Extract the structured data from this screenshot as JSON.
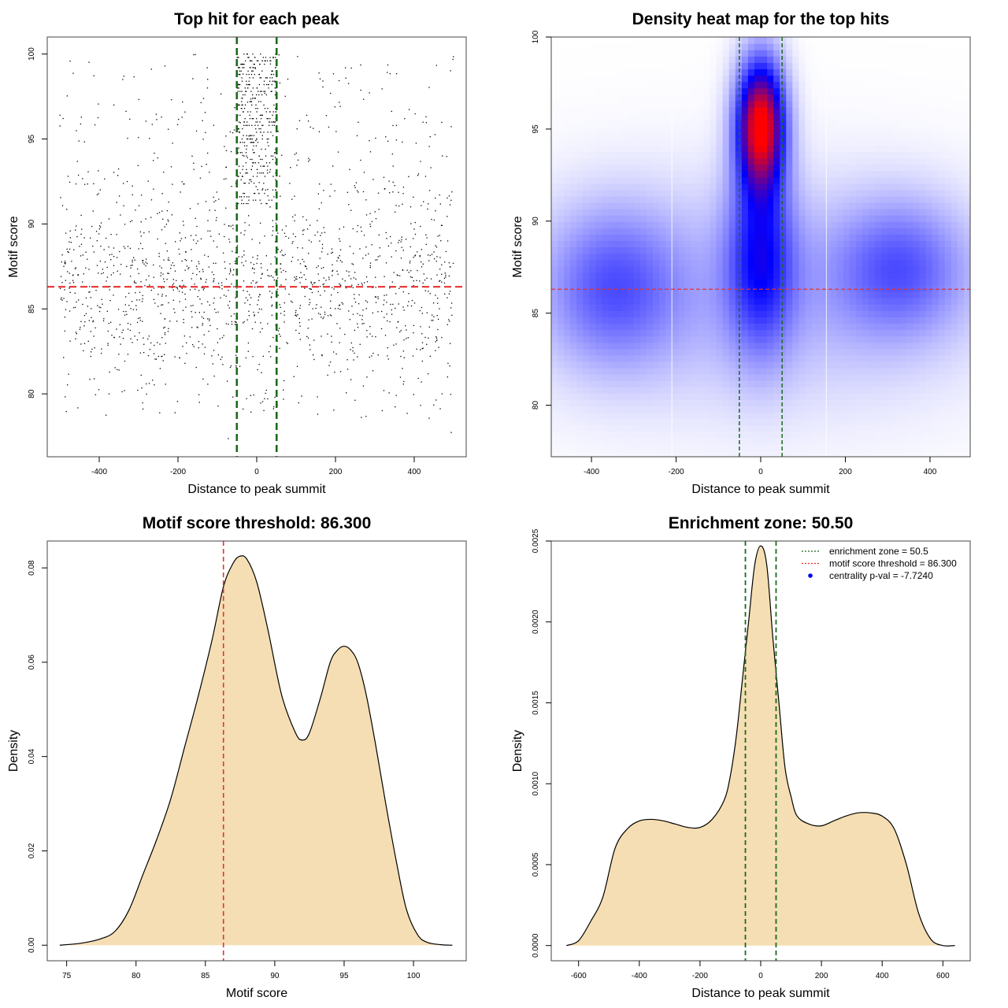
{
  "colors": {
    "threshold_line": "#e8302f",
    "zone_line": "#1a6b1a",
    "density_fill": "#f5deb3",
    "point": "#000000",
    "heat_low": "#ffffff",
    "heat_mid": "#0000ff",
    "heat_high": "#ff0000",
    "legend_zone": "#1a6b1a",
    "legend_threshold": "#e8302f",
    "legend_pval": "#0000ff"
  },
  "chart_data": [
    {
      "id": "scatter",
      "type": "scatter",
      "title": "Top hit for each peak",
      "xlabel": "Distance to peak summit",
      "ylabel": "Motif score",
      "xlim": [
        -532,
        532
      ],
      "ylim": [
        76.3,
        101.0
      ],
      "xticks": [
        -400,
        -200,
        0,
        200,
        400
      ],
      "yticks": [
        80,
        85,
        90,
        95,
        100
      ],
      "hlines": [
        86.3
      ],
      "vlines": [
        -50.5,
        50.5
      ],
      "n_points_approx": 2000,
      "clusters": [
        {
          "x_range": [
            -500,
            500
          ],
          "y_range": [
            78.5,
            100
          ],
          "share": 0.62
        },
        {
          "x_range": [
            -50,
            50
          ],
          "y_range": [
            91,
            100
          ],
          "share": 0.2
        },
        {
          "x_range": [
            -500,
            500
          ],
          "y_range": [
            82,
            90
          ],
          "share": 0.18
        }
      ]
    },
    {
      "id": "heatmap",
      "type": "heatmap",
      "title": "Density heat map for the top hits",
      "xlabel": "Distance to peak summit",
      "ylabel": "Motif score",
      "xlim": [
        -495,
        495
      ],
      "ylim": [
        77.2,
        100.0
      ],
      "xticks": [
        -400,
        -200,
        0,
        200,
        400
      ],
      "yticks": [
        80,
        85,
        90,
        95,
        100
      ],
      "hlines": [
        86.3
      ],
      "vlines": [
        -50.5,
        50.5
      ],
      "white_vlines": [
        -210,
        155
      ],
      "hotspots": [
        {
          "x": 0,
          "y": 95.3,
          "sx": 40,
          "sy": 2.5,
          "w": 1.0
        },
        {
          "x": 0,
          "y": 88,
          "sx": 55,
          "sy": 3.5,
          "w": 0.42
        },
        {
          "x": -350,
          "y": 86.5,
          "sx": 110,
          "sy": 3.0,
          "w": 0.28
        },
        {
          "x": 330,
          "y": 87.5,
          "sx": 110,
          "sy": 2.6,
          "w": 0.28
        },
        {
          "x": 0,
          "y": 86,
          "sx": 400,
          "sy": 4.5,
          "w": 0.16
        }
      ]
    },
    {
      "id": "score-density",
      "type": "area",
      "title": "Motif score threshold: 86.300",
      "xlabel": "Motif score",
      "ylabel": "Density",
      "xlim": [
        73.6,
        103.8
      ],
      "ylim": [
        -0.0033,
        0.0857
      ],
      "xticks": [
        75,
        80,
        85,
        90,
        95,
        100
      ],
      "yticks": [
        0.0,
        0.02,
        0.04,
        0.06,
        0.08
      ],
      "ytick_labels": [
        "0.00",
        "0.02",
        "0.04",
        "0.06",
        "0.08"
      ],
      "vlines": [
        86.3
      ],
      "x": [
        74.5,
        76,
        77.5,
        78.5,
        79.5,
        80.5,
        81.5,
        82.5,
        83.5,
        84.5,
        85.5,
        86.3,
        87,
        87.5,
        88,
        88.7,
        89.5,
        90.5,
        91.5,
        92,
        92.5,
        93.3,
        94,
        94.5,
        95,
        95.5,
        96,
        96.6,
        97.3,
        98,
        98.8,
        99.5,
        100.3,
        101,
        102,
        102.8
      ],
      "y": [
        0.0,
        0.0004,
        0.0014,
        0.003,
        0.0075,
        0.015,
        0.0225,
        0.031,
        0.042,
        0.053,
        0.065,
        0.076,
        0.081,
        0.0825,
        0.0818,
        0.077,
        0.067,
        0.053,
        0.045,
        0.0435,
        0.045,
        0.0525,
        0.06,
        0.0625,
        0.0634,
        0.0625,
        0.0598,
        0.053,
        0.042,
        0.03,
        0.0172,
        0.0075,
        0.0022,
        0.0006,
        0.0001,
        0.0
      ]
    },
    {
      "id": "distance-density",
      "type": "area",
      "title": "Enrichment zone: 50.50",
      "xlabel": "Distance to peak summit",
      "ylabel": "Density",
      "xlim": [
        -690,
        690
      ],
      "ylim": [
        -9.4e-05,
        0.0025
      ],
      "xticks": [
        -600,
        -400,
        -200,
        0,
        200,
        400,
        600
      ],
      "yticks": [
        0.0,
        0.0005,
        0.001,
        0.0015,
        0.002,
        0.0025
      ],
      "ytick_labels": [
        "0.0000",
        "0.0005",
        "0.0010",
        "0.0015",
        "0.0020",
        "0.0025"
      ],
      "vlines": [
        -50.5,
        50.5
      ],
      "x": [
        -640,
        -600,
        -560,
        -520,
        -480,
        -440,
        -400,
        -360,
        -320,
        -280,
        -240,
        -200,
        -160,
        -120,
        -100,
        -80,
        -60,
        -40,
        -20,
        0,
        20,
        40,
        60,
        80,
        100,
        120,
        160,
        200,
        240,
        280,
        320,
        360,
        400,
        440,
        480,
        520,
        560,
        600,
        640
      ],
      "y": [
        0.0,
        3e-05,
        0.00015,
        0.0003,
        0.0006,
        0.00072,
        0.00077,
        0.00078,
        0.00077,
        0.00075,
        0.00073,
        0.00073,
        0.00078,
        0.0009,
        0.00105,
        0.0013,
        0.00165,
        0.002,
        0.00235,
        0.00247,
        0.00235,
        0.0019,
        0.0015,
        0.0011,
        0.00092,
        0.0008,
        0.00075,
        0.00074,
        0.00077,
        0.0008,
        0.00082,
        0.00082,
        0.0008,
        0.00072,
        0.0005,
        0.0002,
        4e-05,
        0.0,
        0.0
      ],
      "legend": {
        "position": "top-right",
        "entries": [
          {
            "label": "enrichment zone = 50.5",
            "style": "dotted-line",
            "color": "#1a6b1a"
          },
          {
            "label": "motif score threshold = 86.300",
            "style": "dotted-line",
            "color": "#e8302f"
          },
          {
            "label": "centrality p-val = -7.7240",
            "style": "point",
            "color": "#0000ff"
          }
        ]
      }
    }
  ]
}
